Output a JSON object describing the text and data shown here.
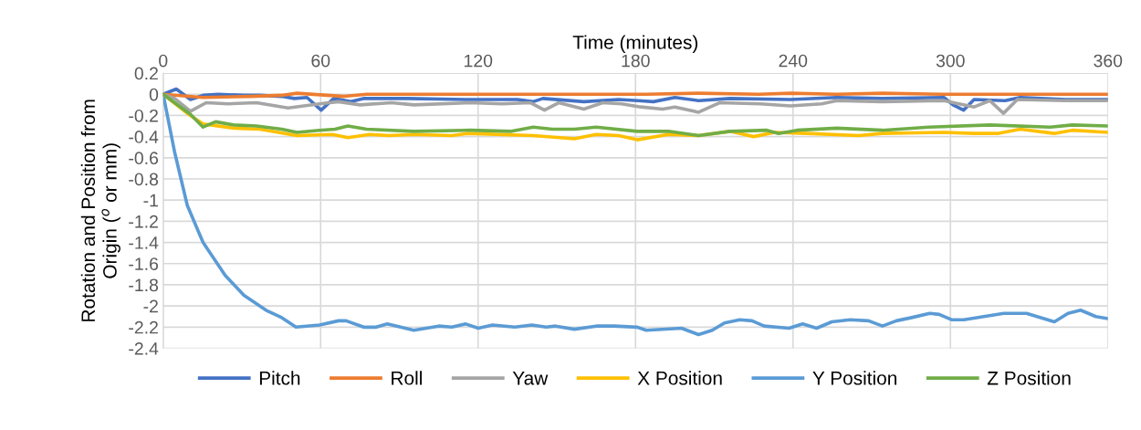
{
  "chart_data": {
    "type": "line",
    "xlabel": "Time (minutes)",
    "ylabel": "Rotation and Position from Origin ($^{o}$ or mm)",
    "xlim": [
      0,
      360
    ],
    "xticks": [
      0,
      60,
      120,
      180,
      240,
      300,
      360
    ],
    "ylim": [
      -2.4,
      0.2
    ],
    "yticks": [
      0.2,
      0,
      -0.2,
      -0.4,
      -0.6,
      -0.8,
      -1,
      -1.2,
      -1.4,
      -1.6,
      -1.8,
      -2,
      -2.2,
      -2.4
    ],
    "grid": true,
    "legend": "bottom",
    "marker": "none",
    "line_style": "solid",
    "series": [
      {
        "name": "Pitch",
        "color": "#4472c4",
        "x": [
          0,
          5,
          10.4,
          15.2,
          21,
          30.8,
          36.8,
          45.2,
          50,
          54.8,
          60.2,
          65,
          71.5,
          76.3,
          93,
          117,
          135,
          141,
          144.7,
          160.3,
          173.5,
          181,
          186.8,
          195,
          204,
          216,
          239,
          256.7,
          274,
          297.5,
          301,
          305,
          309,
          320.8,
          326.6,
          344,
          360
        ],
        "values": [
          0,
          0.05,
          -0.05,
          -0.01,
          0,
          -0.01,
          -0.01,
          -0.02,
          -0.04,
          -0.03,
          -0.15,
          -0.04,
          -0.07,
          -0.04,
          -0.04,
          -0.05,
          -0.05,
          -0.07,
          -0.04,
          -0.07,
          -0.05,
          -0.06,
          -0.07,
          -0.03,
          -0.06,
          -0.04,
          -0.05,
          -0.03,
          -0.04,
          -0.03,
          -0.1,
          -0.15,
          -0.05,
          -0.06,
          -0.03,
          -0.05,
          -0.05
        ]
      },
      {
        "name": "Roll",
        "color": "#ed7d31",
        "x": [
          0,
          15.2,
          33,
          45,
          51,
          69,
          77.5,
          93,
          117,
          141,
          184,
          204,
          227,
          239,
          256.7,
          274,
          297.5,
          360
        ],
        "values": [
          0,
          -0.03,
          -0.02,
          -0.01,
          0.01,
          -0.02,
          0,
          0,
          0,
          0,
          0,
          0.01,
          0,
          0.01,
          0,
          0.01,
          0,
          0
        ]
      },
      {
        "name": "Yaw",
        "color": "#a5a5a5",
        "x": [
          0,
          4.4,
          10.4,
          16.4,
          24.8,
          35.6,
          47.6,
          59.6,
          66.8,
          75,
          87,
          95.5,
          117,
          129,
          140,
          145.3,
          150.7,
          160.3,
          167.5,
          174.7,
          182,
          190.3,
          195,
          204,
          212,
          227.5,
          239,
          250.9,
          256.7,
          274,
          297.5,
          309,
          315,
          320.2,
          325.5,
          344,
          360
        ],
        "values": [
          0,
          -0.04,
          -0.16,
          -0.08,
          -0.09,
          -0.08,
          -0.13,
          -0.09,
          -0.07,
          -0.1,
          -0.08,
          -0.1,
          -0.08,
          -0.09,
          -0.08,
          -0.15,
          -0.08,
          -0.14,
          -0.08,
          -0.09,
          -0.12,
          -0.14,
          -0.12,
          -0.17,
          -0.08,
          -0.09,
          -0.11,
          -0.09,
          -0.06,
          -0.07,
          -0.06,
          -0.12,
          -0.06,
          -0.18,
          -0.05,
          -0.06,
          -0.06
        ]
      },
      {
        "name": "X Position",
        "color": "#ffc000",
        "x": [
          0,
          9.2,
          15.2,
          27,
          36.8,
          51,
          64.4,
          70.4,
          78.7,
          86,
          95.5,
          110,
          116,
          141,
          156.7,
          165,
          173.5,
          180.7,
          192.5,
          204,
          216,
          225,
          233,
          245,
          265,
          274,
          297.5,
          309,
          318,
          326.6,
          339.5,
          346.4,
          360
        ],
        "values": [
          0,
          -0.18,
          -0.28,
          -0.32,
          -0.33,
          -0.39,
          -0.38,
          -0.41,
          -0.38,
          -0.39,
          -0.38,
          -0.39,
          -0.37,
          -0.39,
          -0.42,
          -0.38,
          -0.39,
          -0.43,
          -0.38,
          -0.39,
          -0.35,
          -0.4,
          -0.36,
          -0.37,
          -0.39,
          -0.37,
          -0.36,
          -0.37,
          -0.37,
          -0.33,
          -0.37,
          -0.34,
          -0.36
        ]
      },
      {
        "name": "Y Position",
        "color": "#5b9bd5",
        "x": [
          0,
          4.4,
          9.2,
          15.2,
          23.6,
          30.8,
          39.2,
          45.2,
          50.6,
          59.6,
          66.8,
          69.7,
          76.4,
          81.2,
          85.4,
          95.5,
          105,
          110,
          115.3,
          120.1,
          125.5,
          134,
          140.5,
          146,
          149.5,
          156.7,
          165,
          172,
          180.5,
          184.1,
          197.5,
          204,
          209.2,
          213.9,
          219.7,
          224.4,
          229,
          238.5,
          243.7,
          249,
          254.8,
          261.8,
          268.8,
          274.1,
          279.4,
          285.2,
          292.2,
          295.7,
          300.4,
          305.1,
          320.3,
          329,
          339.6,
          344.8,
          349.6,
          355.4,
          360
        ],
        "values": [
          0,
          -0.55,
          -1.05,
          -1.4,
          -1.71,
          -1.9,
          -2.04,
          -2.11,
          -2.2,
          -2.18,
          -2.14,
          -2.14,
          -2.2,
          -2.2,
          -2.17,
          -2.23,
          -2.19,
          -2.2,
          -2.17,
          -2.21,
          -2.18,
          -2.2,
          -2.18,
          -2.2,
          -2.19,
          -2.22,
          -2.19,
          -2.19,
          -2.2,
          -2.23,
          -2.21,
          -2.27,
          -2.23,
          -2.16,
          -2.13,
          -2.14,
          -2.19,
          -2.21,
          -2.17,
          -2.21,
          -2.15,
          -2.13,
          -2.14,
          -2.19,
          -2.14,
          -2.11,
          -2.07,
          -2.08,
          -2.13,
          -2.13,
          -2.07,
          -2.07,
          -2.15,
          -2.07,
          -2.04,
          -2.1,
          -2.12
        ]
      },
      {
        "name": "Z Position",
        "color": "#70ad47",
        "x": [
          0,
          10.4,
          15.2,
          20,
          27,
          35.6,
          45.2,
          51,
          59.6,
          65.5,
          70.4,
          77.5,
          95.5,
          117,
          132.7,
          141,
          148.3,
          156.7,
          165,
          180.7,
          192.5,
          204,
          216,
          230,
          234.5,
          241.5,
          256.7,
          274,
          291.7,
          315,
          338,
          346.4,
          360
        ],
        "values": [
          0,
          -0.19,
          -0.31,
          -0.26,
          -0.29,
          -0.3,
          -0.33,
          -0.36,
          -0.34,
          -0.33,
          -0.3,
          -0.33,
          -0.35,
          -0.34,
          -0.35,
          -0.31,
          -0.33,
          -0.33,
          -0.31,
          -0.35,
          -0.35,
          -0.39,
          -0.35,
          -0.34,
          -0.37,
          -0.34,
          -0.32,
          -0.34,
          -0.31,
          -0.29,
          -0.31,
          -0.29,
          -0.3
        ]
      }
    ]
  }
}
